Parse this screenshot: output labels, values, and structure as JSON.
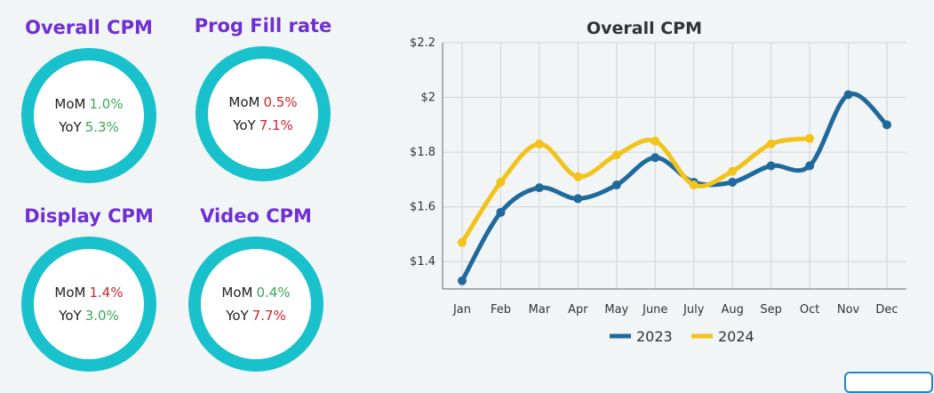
{
  "kpis": [
    {
      "title": "Overall CPM",
      "mom_label": "MoM",
      "mom_value": "1.0%",
      "mom_color": "#3aa856",
      "yoy_label": "YoY",
      "yoy_value": "5.3%",
      "yoy_color": "#3aa856"
    },
    {
      "title": "Prog Fill rate",
      "mom_label": "MoM",
      "mom_value": "0.5%",
      "mom_color": "#d0242b",
      "yoy_label": "YoY",
      "yoy_value": "7.1%",
      "yoy_color": "#d0242b"
    },
    {
      "title": "Display CPM",
      "mom_label": "MoM",
      "mom_value": "1.4%",
      "mom_color": "#d0242b",
      "yoy_label": "YoY",
      "yoy_value": "3.0%",
      "yoy_color": "#3aa856"
    },
    {
      "title": "Video CPM",
      "mom_label": "MoM",
      "mom_value": "0.4%",
      "mom_color": "#3aa856",
      "yoy_label": "YoY",
      "yoy_value": "7.7%",
      "yoy_color": "#d0242b"
    }
  ],
  "ring_color": "#19c1cc",
  "title_color": "#6f2fd3",
  "chart_data": {
    "type": "line",
    "title": "Overall CPM",
    "xlabel": "",
    "ylabel": "",
    "categories": [
      "Jan",
      "Feb",
      "Mar",
      "Apr",
      "May",
      "June",
      "July",
      "Aug",
      "Sep",
      "Oct",
      "Nov",
      "Dec"
    ],
    "ylim": [
      1.3,
      2.2
    ],
    "yticks": [
      1.4,
      1.6,
      1.8,
      2.0,
      2.2
    ],
    "ytick_labels": [
      "$1.4",
      "$1.6",
      "$1.8",
      "$2",
      "$2.2"
    ],
    "grid": true,
    "legend_position": "bottom",
    "series": [
      {
        "name": "2023",
        "color": "#1f6a9c",
        "values": [
          1.33,
          1.58,
          1.67,
          1.63,
          1.68,
          1.78,
          1.69,
          1.69,
          1.75,
          1.75,
          2.01,
          1.9
        ]
      },
      {
        "name": "2024",
        "color": "#f2c31a",
        "values": [
          1.47,
          1.69,
          1.83,
          1.71,
          1.79,
          1.84,
          1.68,
          1.73,
          1.83,
          1.85,
          null,
          null
        ]
      }
    ]
  }
}
